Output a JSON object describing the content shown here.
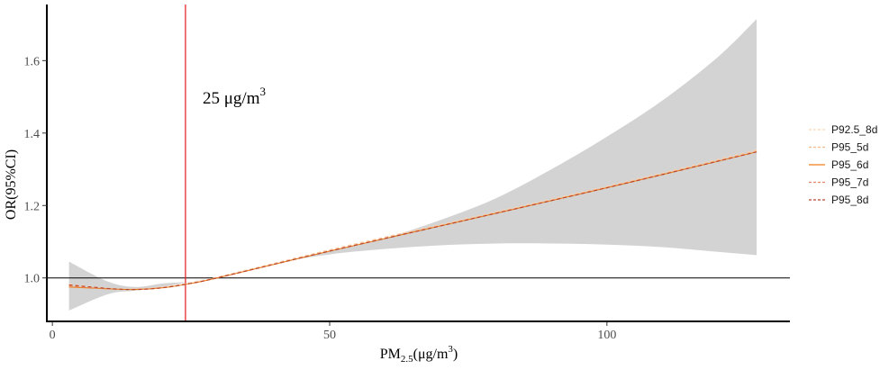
{
  "chart_data": {
    "type": "line",
    "title": "",
    "xlabel_main": "PM",
    "xlabel_sub": "2.5",
    "xlabel_unit": "(μg/m",
    "xlabel_sup": "3",
    "xlabel_close": ")",
    "ylabel": "OR(95%CI)",
    "xlim": [
      -1,
      133
    ],
    "ylim": [
      0.88,
      1.755
    ],
    "x_ticks": [
      0,
      50,
      100
    ],
    "x_tick_labels": [
      "0",
      "50",
      "100"
    ],
    "y_ticks": [
      1.0,
      1.2,
      1.4,
      1.6
    ],
    "y_tick_labels": [
      "1.0",
      "1.2",
      "1.4",
      "1.6"
    ],
    "reference_line_y": 1.0,
    "vline": {
      "x": 24,
      "label": "25 μg/m",
      "label_sup": "3",
      "color": "#e41a1c"
    },
    "ci_band": {
      "x": [
        3,
        10,
        15,
        20,
        25,
        30,
        40,
        50,
        60,
        70,
        80,
        90,
        100,
        110,
        120,
        127
      ],
      "lower": [
        0.91,
        0.955,
        0.965,
        0.975,
        0.99,
        1.005,
        1.04,
        1.065,
        1.08,
        1.09,
        1.095,
        1.095,
        1.092,
        1.085,
        1.072,
        1.063
      ],
      "upper": [
        1.045,
        0.99,
        0.975,
        0.985,
        0.99,
        1.005,
        1.04,
        1.075,
        1.11,
        1.16,
        1.22,
        1.3,
        1.39,
        1.49,
        1.61,
        1.715
      ],
      "color": "#d3d3d3"
    },
    "legend_position": "right",
    "series": [
      {
        "name": "P92.5_8d",
        "color": "#fcd5b5",
        "dash": "4,3",
        "x": [
          3,
          10,
          15,
          20,
          25,
          30,
          50,
          75,
          100,
          127
        ],
        "y": [
          0.983,
          0.972,
          0.97,
          0.975,
          0.987,
          1.003,
          1.078,
          1.165,
          1.253,
          1.353
        ]
      },
      {
        "name": "P95_5d",
        "color": "#f7b98b",
        "dash": "4,3",
        "x": [
          3,
          10,
          15,
          20,
          25,
          30,
          50,
          75,
          100,
          127
        ],
        "y": [
          0.98,
          0.971,
          0.969,
          0.974,
          0.986,
          1.002,
          1.076,
          1.163,
          1.251,
          1.351
        ]
      },
      {
        "name": "P95_6d",
        "color": "#f07f1a",
        "dash": "",
        "x": [
          3,
          10,
          15,
          20,
          25,
          30,
          50,
          75,
          100,
          127
        ],
        "y": [
          0.975,
          0.97,
          0.968,
          0.973,
          0.985,
          1.001,
          1.074,
          1.161,
          1.249,
          1.348
        ]
      },
      {
        "name": "P95_7d",
        "color": "#e8846c",
        "dash": "4,3",
        "x": [
          3,
          10,
          15,
          20,
          25,
          30,
          50,
          75,
          100,
          127
        ],
        "y": [
          0.978,
          0.97,
          0.968,
          0.973,
          0.985,
          1.001,
          1.074,
          1.161,
          1.249,
          1.348
        ]
      },
      {
        "name": "P95_8d",
        "color": "#b5472e",
        "dash": "4,3",
        "x": [
          3,
          10,
          15,
          20,
          25,
          30,
          50,
          75,
          100,
          127
        ],
        "y": [
          0.981,
          0.971,
          0.968,
          0.973,
          0.985,
          1.001,
          1.074,
          1.161,
          1.249,
          1.348
        ]
      }
    ]
  }
}
